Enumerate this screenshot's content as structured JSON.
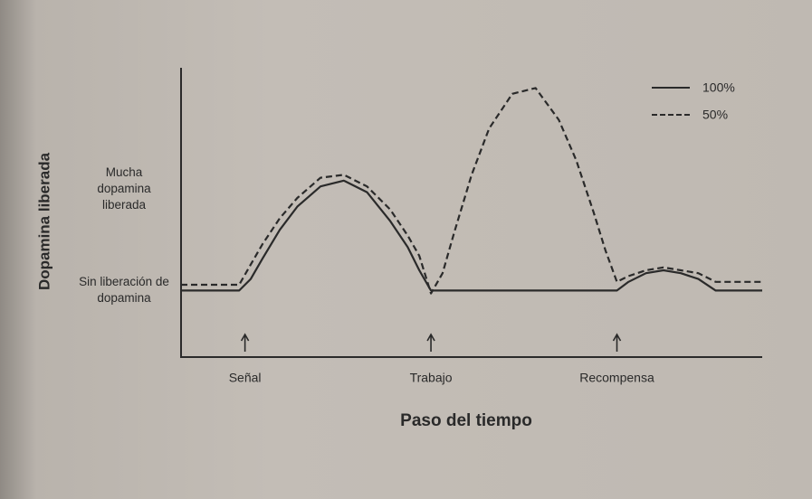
{
  "chart_data": {
    "type": "line",
    "xlabel": "Paso del tiempo",
    "ylabel": "Dopamina liberada",
    "xlim": [
      0,
      100
    ],
    "ylim": [
      0,
      100
    ],
    "xticks": [
      {
        "value": 11,
        "label": "Señal"
      },
      {
        "value": 43,
        "label": "Trabajo"
      },
      {
        "value": 75,
        "label": "Recompensa"
      }
    ],
    "yticks": [
      {
        "value": 23,
        "label": "Sin liberación de dopamina"
      },
      {
        "value": 58,
        "label": "Mucha dopamina liberada"
      }
    ],
    "legend": "upper right",
    "x": [
      0,
      5,
      10,
      12,
      14,
      17,
      20,
      24,
      28,
      32,
      36,
      39,
      41,
      43,
      45,
      47,
      50,
      53,
      57,
      61,
      65,
      68,
      71,
      73,
      75,
      77,
      80,
      83,
      86,
      89,
      92,
      96,
      100
    ],
    "series": [
      {
        "name": "100%",
        "color": "#2a2a2a",
        "linestyle": "solid",
        "values": [
          23,
          23,
          23,
          27,
          34,
          44,
          52,
          59,
          61,
          57,
          47,
          38,
          30,
          23,
          23,
          23,
          23,
          23,
          23,
          23,
          23,
          23,
          23,
          23,
          23,
          26,
          29,
          30,
          29,
          27,
          23,
          23,
          23
        ]
      },
      {
        "name": "50%",
        "color": "#2a2a2a",
        "linestyle": "dashed",
        "values": [
          25,
          25,
          25,
          32,
          39,
          48,
          55,
          62,
          63,
          59,
          51,
          42,
          35,
          22,
          29,
          43,
          63,
          79,
          91,
          93,
          82,
          68,
          50,
          37,
          26,
          28,
          30,
          31,
          30,
          29,
          26,
          26,
          26
        ]
      }
    ]
  }
}
